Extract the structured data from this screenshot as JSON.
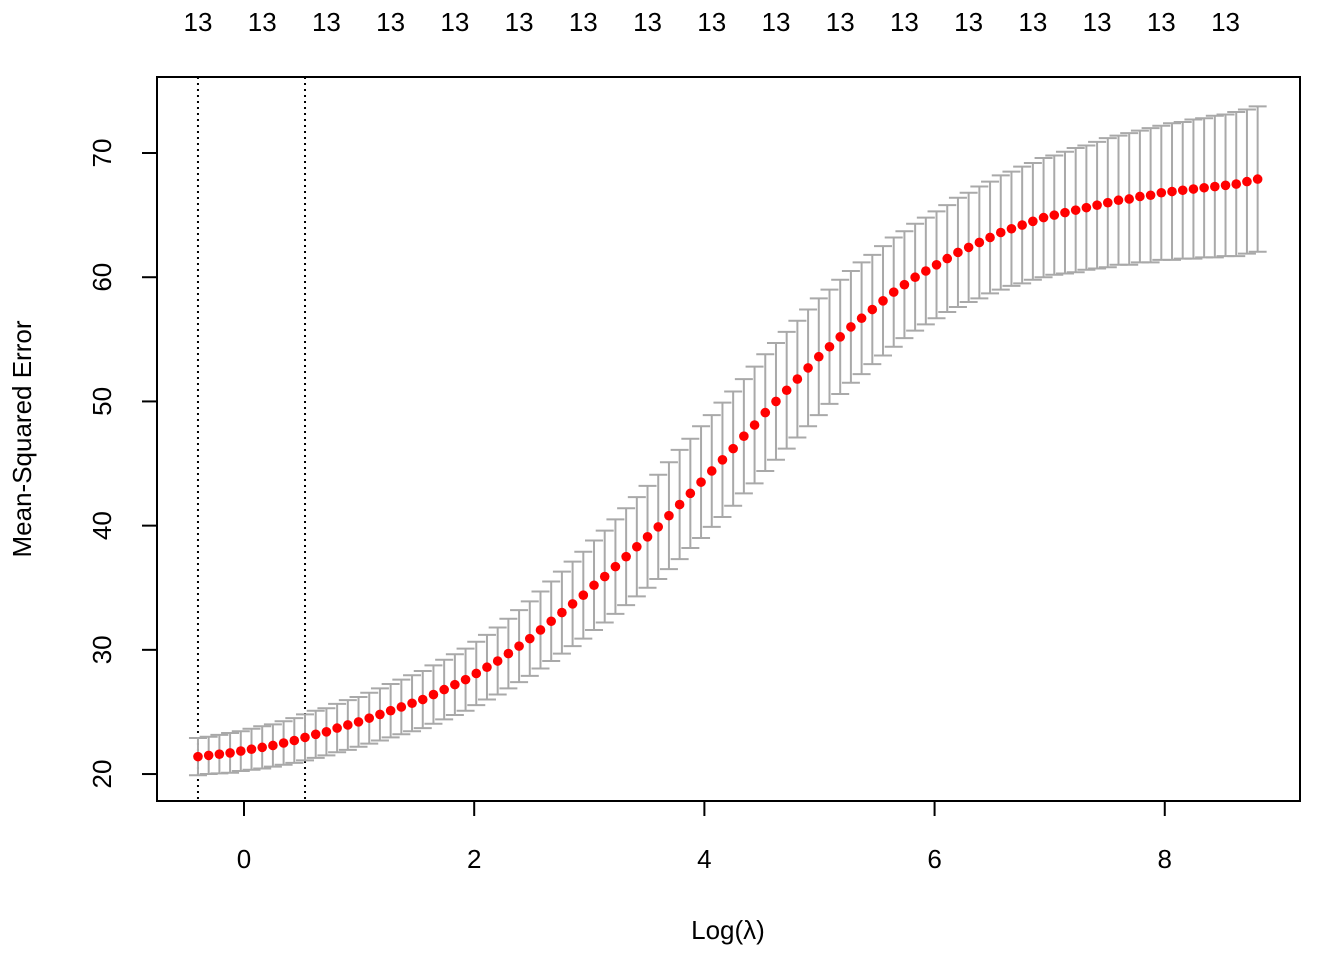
{
  "chart_data": {
    "type": "errorbar",
    "x_label": "Log(λ)",
    "y_label": "Mean-Squared Error",
    "xlim": [
      -0.756,
      9.175
    ],
    "ylim": [
      17.83,
      76.12
    ],
    "xticks": [
      0,
      2,
      4,
      6,
      8
    ],
    "yticks": [
      20,
      30,
      40,
      50,
      60,
      70
    ],
    "top_ticks": [
      {
        "value": -0.4,
        "label": "13"
      },
      {
        "value": 0.158,
        "label": "13"
      },
      {
        "value": 0.716,
        "label": "13"
      },
      {
        "value": 1.274,
        "label": "13"
      },
      {
        "value": 1.832,
        "label": "13"
      },
      {
        "value": 2.39,
        "label": "13"
      },
      {
        "value": 2.948,
        "label": "13"
      },
      {
        "value": 3.506,
        "label": "13"
      },
      {
        "value": 4.064,
        "label": "13"
      },
      {
        "value": 4.622,
        "label": "13"
      },
      {
        "value": 5.18,
        "label": "13"
      },
      {
        "value": 5.738,
        "label": "13"
      },
      {
        "value": 6.296,
        "label": "13"
      },
      {
        "value": 6.854,
        "label": "13"
      },
      {
        "value": 7.412,
        "label": "13"
      },
      {
        "value": 7.97,
        "label": "13"
      },
      {
        "value": 8.528,
        "label": "13"
      }
    ],
    "vlines": [
      -0.4,
      0.53
    ],
    "point_color": "#ff0000",
    "bar_color": "#a9a9a9",
    "x": [
      -0.4,
      -0.307,
      -0.214,
      -0.121,
      -0.028,
      0.065,
      0.158,
      0.251,
      0.344,
      0.437,
      0.53,
      0.623,
      0.716,
      0.809,
      0.902,
      0.995,
      1.088,
      1.181,
      1.274,
      1.367,
      1.46,
      1.553,
      1.646,
      1.739,
      1.832,
      1.925,
      2.018,
      2.111,
      2.204,
      2.297,
      2.39,
      2.483,
      2.576,
      2.669,
      2.762,
      2.855,
      2.948,
      3.041,
      3.134,
      3.227,
      3.32,
      3.413,
      3.506,
      3.599,
      3.692,
      3.785,
      3.878,
      3.971,
      4.064,
      4.157,
      4.25,
      4.343,
      4.436,
      4.529,
      4.622,
      4.715,
      4.808,
      4.901,
      4.994,
      5.087,
      5.18,
      5.273,
      5.366,
      5.459,
      5.552,
      5.645,
      5.738,
      5.831,
      5.924,
      6.017,
      6.11,
      6.203,
      6.296,
      6.389,
      6.482,
      6.575,
      6.668,
      6.761,
      6.854,
      6.947,
      7.04,
      7.133,
      7.226,
      7.319,
      7.412,
      7.505,
      7.598,
      7.691,
      7.784,
      7.877,
      7.97,
      8.063,
      8.156,
      8.249,
      8.342,
      8.435,
      8.528,
      8.621,
      8.714,
      8.807
    ],
    "values": [
      21.4,
      21.5,
      21.6,
      21.7,
      21.85,
      22.0,
      22.15,
      22.3,
      22.5,
      22.7,
      22.95,
      23.2,
      23.4,
      23.7,
      23.95,
      24.2,
      24.5,
      24.8,
      25.1,
      25.4,
      25.7,
      26.0,
      26.4,
      26.8,
      27.2,
      27.6,
      28.1,
      28.6,
      29.1,
      29.7,
      30.3,
      30.9,
      31.6,
      32.3,
      33.0,
      33.7,
      34.4,
      35.2,
      35.9,
      36.7,
      37.5,
      38.3,
      39.1,
      39.9,
      40.8,
      41.7,
      42.6,
      43.5,
      44.4,
      45.3,
      46.2,
      47.2,
      48.1,
      49.1,
      50.0,
      50.9,
      51.8,
      52.7,
      53.6,
      54.4,
      55.2,
      56.0,
      56.7,
      57.4,
      58.1,
      58.8,
      59.4,
      60.0,
      60.5,
      61.0,
      61.5,
      62.0,
      62.4,
      62.8,
      63.2,
      63.6,
      63.9,
      64.2,
      64.5,
      64.8,
      65.0,
      65.2,
      65.4,
      65.6,
      65.8,
      66.0,
      66.2,
      66.3,
      66.5,
      66.6,
      66.8,
      66.9,
      67.0,
      67.1,
      67.2,
      67.3,
      67.4,
      67.5,
      67.7,
      67.9
    ],
    "errors": [
      1.5,
      1.5,
      1.55,
      1.6,
      1.6,
      1.65,
      1.7,
      1.7,
      1.75,
      1.8,
      1.85,
      1.9,
      1.9,
      1.95,
      2.0,
      2.0,
      2.05,
      2.1,
      2.15,
      2.2,
      2.25,
      2.3,
      2.35,
      2.4,
      2.45,
      2.5,
      2.55,
      2.6,
      2.7,
      2.8,
      2.9,
      3.0,
      3.1,
      3.2,
      3.3,
      3.4,
      3.5,
      3.6,
      3.7,
      3.8,
      3.9,
      4.0,
      4.1,
      4.2,
      4.3,
      4.4,
      4.4,
      4.5,
      4.5,
      4.6,
      4.6,
      4.6,
      4.7,
      4.7,
      4.7,
      4.7,
      4.7,
      4.7,
      4.7,
      4.6,
      4.6,
      4.5,
      4.5,
      4.4,
      4.4,
      4.4,
      4.3,
      4.3,
      4.3,
      4.3,
      4.3,
      4.4,
      4.4,
      4.5,
      4.5,
      4.6,
      4.6,
      4.7,
      4.7,
      4.8,
      4.8,
      4.9,
      5.0,
      5.0,
      5.1,
      5.2,
      5.2,
      5.3,
      5.3,
      5.4,
      5.4,
      5.5,
      5.5,
      5.6,
      5.6,
      5.7,
      5.7,
      5.8,
      5.8,
      5.85
    ]
  }
}
